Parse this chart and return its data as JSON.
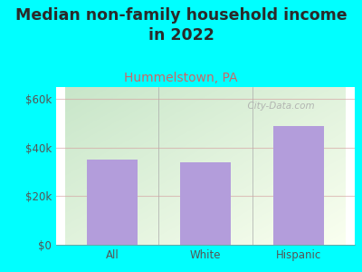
{
  "title": "Median non-family household income\nin 2022",
  "subtitle": "Hummelstown, PA",
  "categories": [
    "All",
    "White",
    "Hispanic"
  ],
  "values": [
    35000,
    34000,
    49000
  ],
  "bar_color": "#b39ddb",
  "background_color": "#00ffff",
  "plot_bg_topleft": "#c8e6c9",
  "plot_bg_topright": "#f5f5dc",
  "plot_bg_bottom": "#f0fff0",
  "yticks": [
    0,
    20000,
    40000,
    60000
  ],
  "ytick_labels": [
    "$0",
    "$20k",
    "$40k",
    "$60k"
  ],
  "ylim": [
    0,
    65000
  ],
  "title_fontsize": 12.5,
  "subtitle_fontsize": 10,
  "tick_fontsize": 8.5,
  "title_color": "#2a2a2a",
  "subtitle_color": "#cc6666",
  "tick_color": "#555555",
  "gridline_color": "#d4a0a0",
  "gridline_alpha": 0.6,
  "watermark_text": "  City-Data.com",
  "watermark_color": "#aaaaaa"
}
